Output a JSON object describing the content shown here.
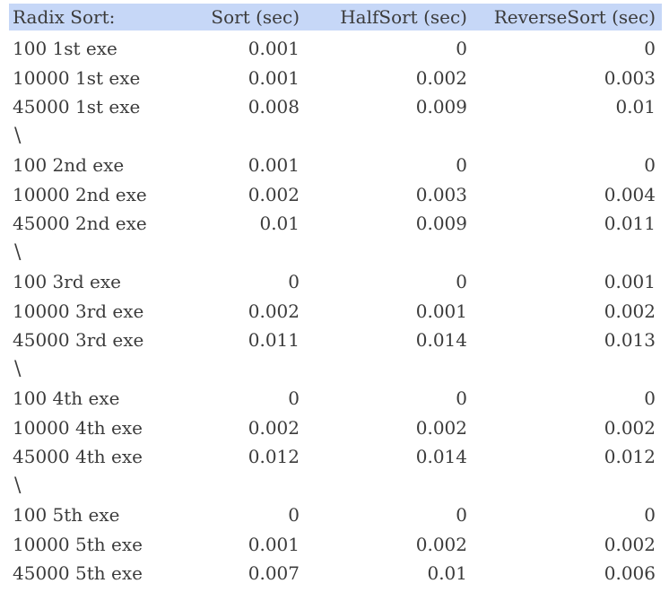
{
  "table": {
    "headers": [
      "Radix Sort:",
      "Sort (sec)",
      "HalfSort (sec)",
      "ReverseSort (sec)"
    ],
    "rows": [
      {
        "label": "100 1st exe",
        "sort": "0.001",
        "half": "0",
        "reverse": "0"
      },
      {
        "label": "10000 1st exe",
        "sort": "0.001",
        "half": "0.002",
        "reverse": "0.003"
      },
      {
        "label": "45000 1st exe",
        "sort": "0.008",
        "half": "0.009",
        "reverse": "0.01"
      },
      {
        "label": "\\",
        "sort": "",
        "half": "",
        "reverse": "",
        "separator": true
      },
      {
        "label": "100 2nd exe",
        "sort": "0.001",
        "half": "0",
        "reverse": "0"
      },
      {
        "label": "10000 2nd exe",
        "sort": "0.002",
        "half": "0.003",
        "reverse": "0.004"
      },
      {
        "label": "45000 2nd exe",
        "sort": "0.01",
        "half": "0.009",
        "reverse": "0.011"
      },
      {
        "label": "\\",
        "sort": "",
        "half": "",
        "reverse": "",
        "separator": true
      },
      {
        "label": "100 3rd exe",
        "sort": "0",
        "half": "0",
        "reverse": "0.001"
      },
      {
        "label": "10000 3rd exe",
        "sort": "0.002",
        "half": "0.001",
        "reverse": "0.002"
      },
      {
        "label": "45000 3rd exe",
        "sort": "0.011",
        "half": "0.014",
        "reverse": "0.013"
      },
      {
        "label": "\\",
        "sort": "",
        "half": "",
        "reverse": "",
        "separator": true
      },
      {
        "label": "100 4th exe",
        "sort": "0",
        "half": "0",
        "reverse": "0"
      },
      {
        "label": "10000 4th exe",
        "sort": "0.002",
        "half": "0.002",
        "reverse": "0.002"
      },
      {
        "label": "45000 4th exe",
        "sort": "0.012",
        "half": "0.014",
        "reverse": "0.012"
      },
      {
        "label": "\\",
        "sort": "",
        "half": "",
        "reverse": "",
        "separator": true
      },
      {
        "label": "100 5th exe",
        "sort": "0",
        "half": "0",
        "reverse": "0"
      },
      {
        "label": "10000 5th exe",
        "sort": "0.001",
        "half": "0.002",
        "reverse": "0.002"
      },
      {
        "label": "45000 5th exe",
        "sort": "0.007",
        "half": "0.01",
        "reverse": "0.006"
      }
    ]
  },
  "colors": {
    "header_background": "#c6d7f7",
    "text": "#3b3b3b"
  }
}
